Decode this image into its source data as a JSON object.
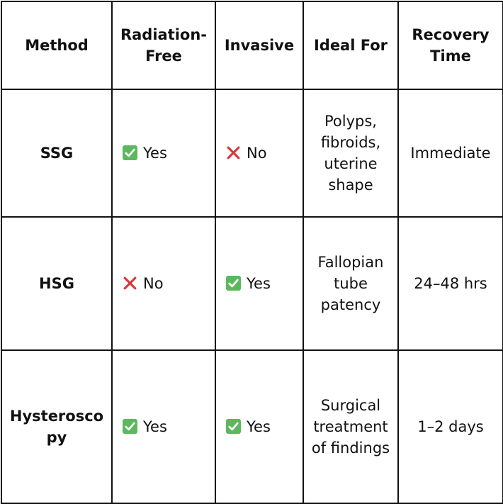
{
  "colors": {
    "check": "#5cb85c",
    "cross": "#d9383a",
    "border": "#111111"
  },
  "headers": {
    "method": "Method",
    "radiation_free": "Radiation-Free",
    "invasive": "Invasive",
    "ideal_for": "Ideal For",
    "recovery_time": "Recovery Time"
  },
  "rows": [
    {
      "method": "SSG",
      "radiation_free": {
        "icon": "check-mark-icon",
        "label": "Yes"
      },
      "invasive": {
        "icon": "cross-mark-icon",
        "label": "No"
      },
      "ideal_for": "Polyps, fibroids, uterine shape",
      "recovery_time": "Immediate"
    },
    {
      "method": "HSG",
      "radiation_free": {
        "icon": "cross-mark-icon",
        "label": "No"
      },
      "invasive": {
        "icon": "check-mark-icon",
        "label": "Yes"
      },
      "ideal_for": "Fallopian tube patency",
      "recovery_time": "24–48 hrs"
    },
    {
      "method": "Hysteroscopy",
      "radiation_free": {
        "icon": "check-mark-icon",
        "label": "Yes"
      },
      "invasive": {
        "icon": "check-mark-icon",
        "label": "Yes"
      },
      "ideal_for": "Surgical treatment of findings",
      "recovery_time": "1–2 days"
    }
  ]
}
